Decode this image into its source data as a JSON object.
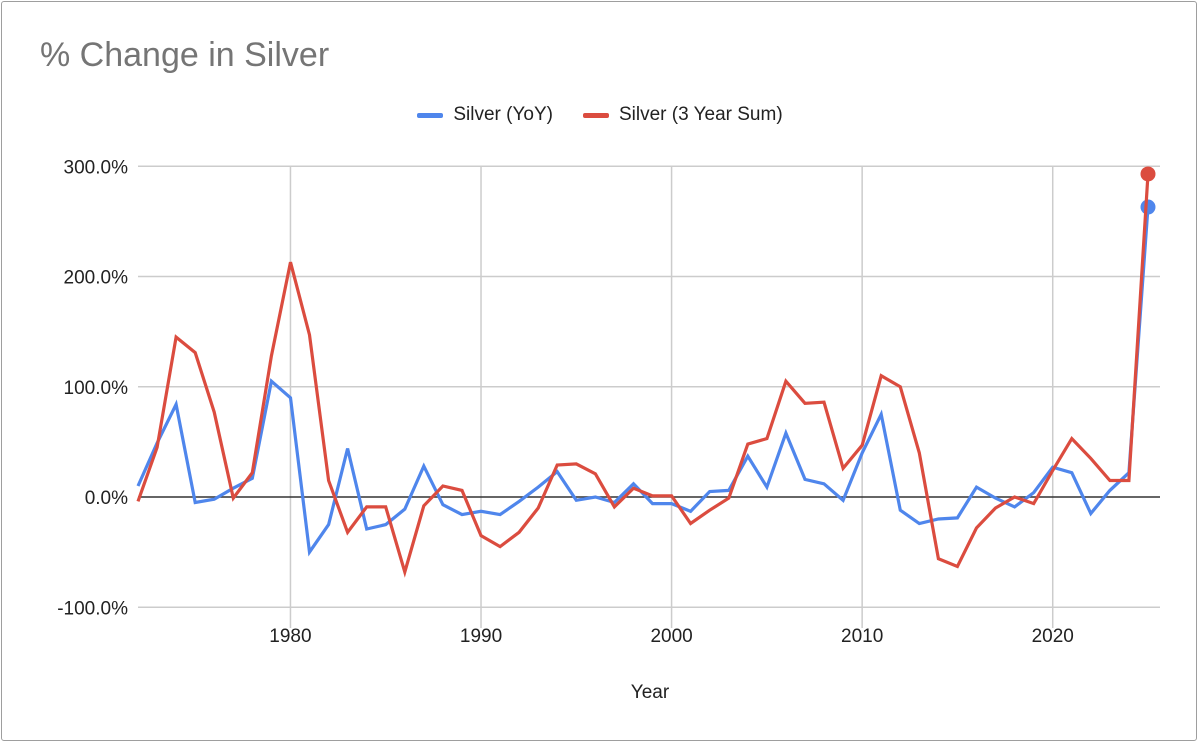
{
  "chart_data": {
    "type": "line",
    "title": "% Change in Silver",
    "xlabel": "Year",
    "ylabel": "",
    "xlim": [
      1972,
      2025
    ],
    "ylim": [
      -100,
      300
    ],
    "y_ticks": [
      -100,
      0,
      100,
      200,
      300
    ],
    "y_tick_labels": [
      "-100.0%",
      "0.0%",
      "100.0%",
      "200.0%",
      "300.0%"
    ],
    "x_ticks": [
      1980,
      1990,
      2000,
      2010,
      2020
    ],
    "x_tick_labels": [
      "1980",
      "1990",
      "2000",
      "2010",
      "2020"
    ],
    "grid": true,
    "legend_position": "top",
    "x": [
      1972,
      1973,
      1974,
      1975,
      1976,
      1977,
      1978,
      1979,
      1980,
      1981,
      1982,
      1983,
      1984,
      1985,
      1986,
      1987,
      1988,
      1989,
      1990,
      1991,
      1992,
      1993,
      1994,
      1995,
      1996,
      1997,
      1998,
      1999,
      2000,
      2001,
      2002,
      2003,
      2004,
      2005,
      2006,
      2007,
      2008,
      2009,
      2010,
      2011,
      2012,
      2013,
      2014,
      2015,
      2016,
      2017,
      2018,
      2019,
      2020,
      2021,
      2022,
      2023,
      2024,
      2025
    ],
    "series": [
      {
        "name": "Silver (YoY)",
        "color": "#4f86ec",
        "values": [
          10,
          49,
          84,
          -5,
          -2,
          8,
          17,
          105,
          90,
          -50,
          -25,
          44,
          -29,
          -25,
          -11,
          28,
          -7,
          -16,
          -13,
          -16,
          -4,
          9,
          23,
          -3,
          0,
          -5,
          12,
          -6,
          -6,
          -13,
          5,
          6,
          37,
          9,
          58,
          16,
          12,
          -3,
          40,
          75,
          -12,
          -24,
          -20,
          -19,
          9,
          -1,
          -9,
          4,
          27,
          22,
          -15,
          6,
          22,
          263
        ]
      },
      {
        "name": "Silver (3 Year Sum)",
        "color": "#db4c3f",
        "values": [
          -4,
          45,
          145,
          131,
          77,
          -1,
          22,
          128,
          213,
          147,
          15,
          -32,
          -9,
          -9,
          -68,
          -8,
          10,
          6,
          -35,
          -45,
          -32,
          -10,
          29,
          30,
          21,
          -9,
          8,
          1,
          1,
          -24,
          -12,
          -1,
          48,
          53,
          105,
          85,
          86,
          26,
          47,
          110,
          100,
          40,
          -56,
          -63,
          -28,
          -10,
          0,
          -6,
          24,
          53,
          35,
          15,
          15,
          293
        ]
      }
    ]
  }
}
